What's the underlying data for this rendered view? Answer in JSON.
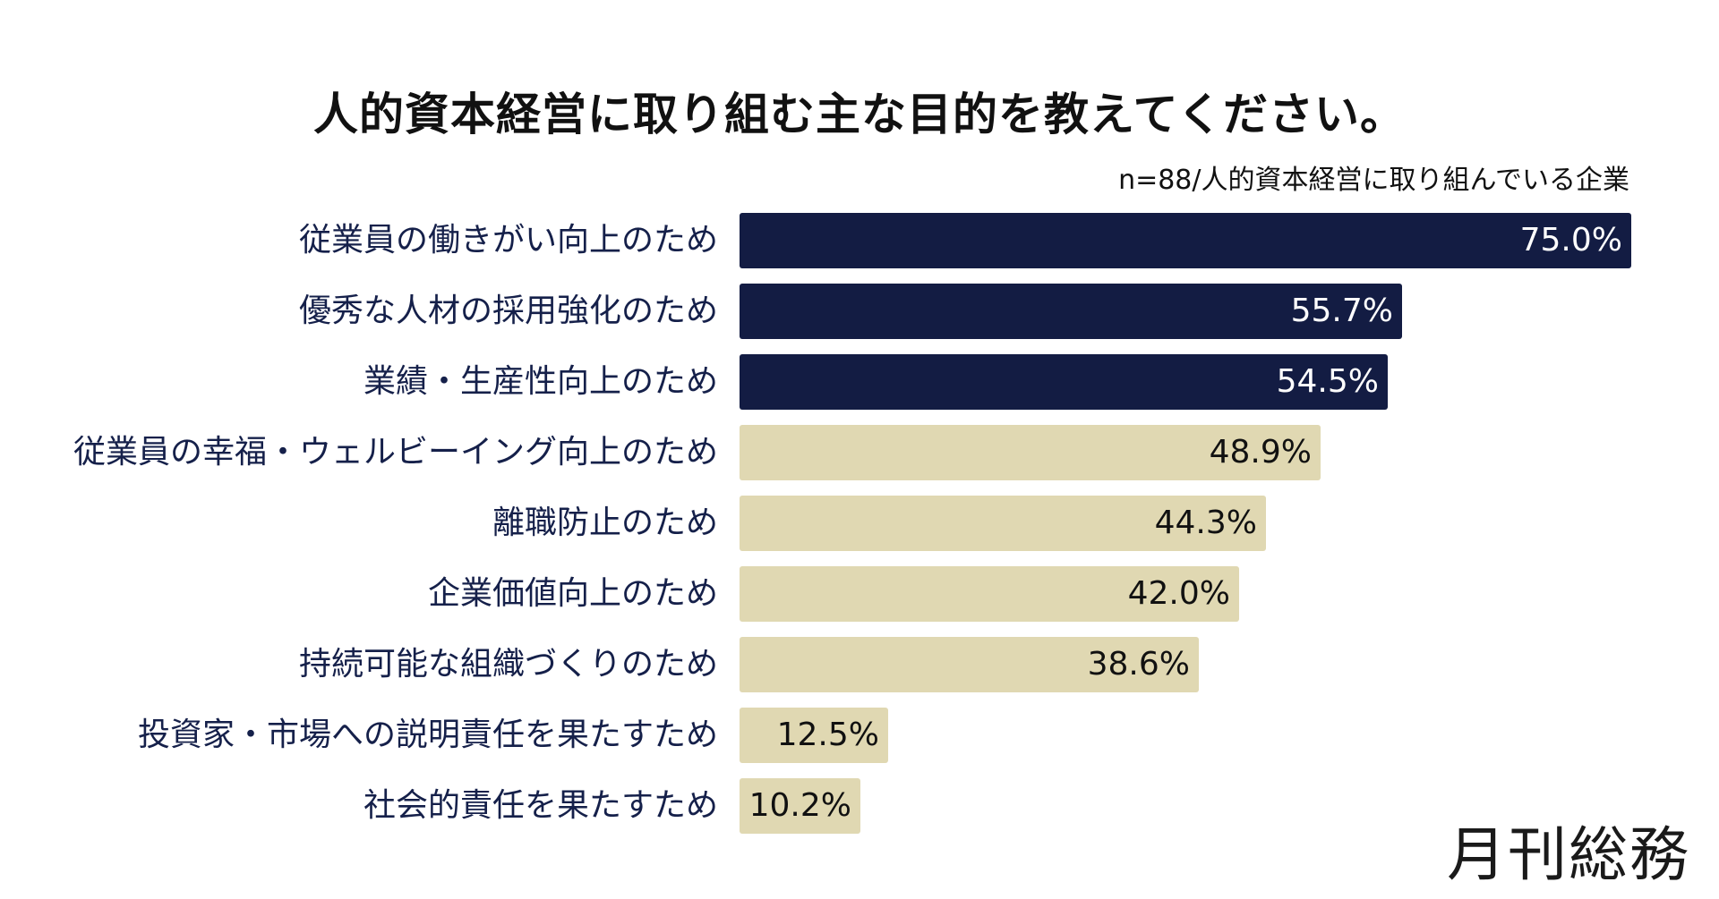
{
  "chart_data": {
    "type": "bar",
    "orientation": "horizontal",
    "title": "人的資本経営に取り組む主な目的を教えてください。",
    "subtitle": "n=88/人的資本経営に取り組んでいる企業",
    "categories": [
      "従業員の働きがい向上のため",
      "優秀な人材の採用強化のため",
      "業績・生産性向上のため",
      "従業員の幸福・ウェルビーイング向上のため",
      "離職防止のため",
      "企業価値向上のため",
      "持続可能な組織づくりのため",
      "投資家・市場への説明責任を果たすため",
      "社会的責任を果たすため"
    ],
    "values": [
      75.0,
      55.7,
      54.5,
      48.9,
      44.3,
      42.0,
      38.6,
      12.5,
      10.2
    ],
    "value_labels": [
      "75.0%",
      "55.7%",
      "54.5%",
      "48.9%",
      "44.3%",
      "42.0%",
      "38.6%",
      "12.5%",
      "10.2%"
    ],
    "unit": "%",
    "highlight_count": 3,
    "xlim": [
      0,
      75
    ],
    "grid": false,
    "legend": "none"
  },
  "colors": {
    "highlight_bar": "#131c43",
    "other_bar": "#e0d8b2",
    "highlight_text": "#ffffff",
    "other_text": "#111111",
    "category_text": "#15204a"
  },
  "logo": {
    "text": "月刊総務"
  }
}
